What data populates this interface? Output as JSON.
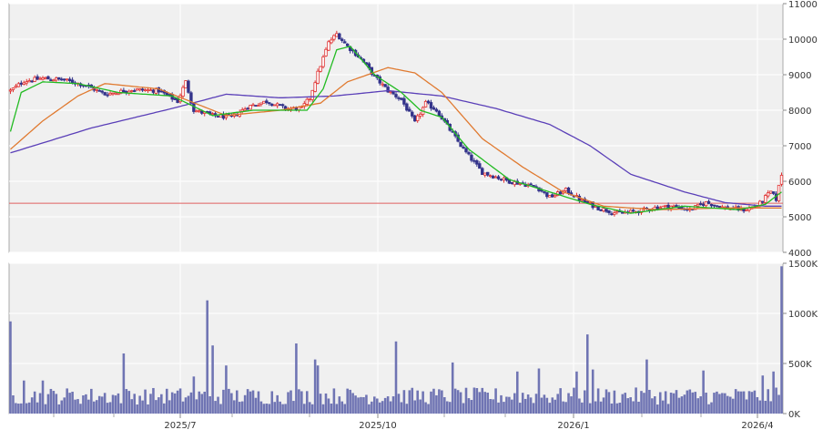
{
  "chart_data": [
    {
      "type": "candlestick",
      "title": "",
      "y_ticks": [
        "11000",
        "10000",
        "9000",
        "8000",
        "7000",
        "6000",
        "5000",
        "4000"
      ],
      "ylim": [
        4000,
        11000
      ],
      "x_ticks": [
        "2025/7",
        "2025/10",
        "2026/1",
        "2026/4"
      ],
      "grid": true,
      "reference_line": 5380,
      "colors": {
        "up": "#e03030",
        "down": "#33338a",
        "ma_short": "#22bb22",
        "ma_mid": "#e07a30",
        "ma_long": "#5a3fb8",
        "reference": "#e06060"
      },
      "price_keypoints": [
        [
          0,
          8550
        ],
        [
          5,
          8820
        ],
        [
          12,
          8900
        ],
        [
          20,
          8850
        ],
        [
          28,
          8700
        ],
        [
          35,
          8450
        ],
        [
          45,
          8580
        ],
        [
          55,
          8550
        ],
        [
          62,
          8250
        ],
        [
          65,
          8800
        ],
        [
          68,
          8000
        ],
        [
          75,
          7850
        ],
        [
          82,
          7800
        ],
        [
          88,
          8100
        ],
        [
          95,
          8250
        ],
        [
          102,
          8050
        ],
        [
          108,
          8050
        ],
        [
          111,
          8350
        ],
        [
          114,
          9050
        ],
        [
          118,
          9900
        ],
        [
          121,
          10150
        ],
        [
          125,
          9800
        ],
        [
          130,
          9450
        ],
        [
          135,
          8950
        ],
        [
          140,
          8550
        ],
        [
          145,
          8300
        ],
        [
          150,
          7650
        ],
        [
          154,
          8200
        ],
        [
          158,
          8000
        ],
        [
          163,
          7450
        ],
        [
          168,
          6900
        ],
        [
          175,
          6250
        ],
        [
          185,
          6000
        ],
        [
          195,
          5850
        ],
        [
          200,
          5550
        ],
        [
          206,
          5750
        ],
        [
          212,
          5450
        ],
        [
          218,
          5250
        ],
        [
          225,
          5100
        ],
        [
          232,
          5150
        ],
        [
          238,
          5250
        ],
        [
          245,
          5300
        ],
        [
          252,
          5200
        ],
        [
          258,
          5400
        ],
        [
          265,
          5250
        ],
        [
          272,
          5200
        ],
        [
          277,
          5300
        ],
        [
          280,
          5550
        ],
        [
          282,
          5700
        ],
        [
          284,
          5500
        ],
        [
          286,
          6200
        ]
      ],
      "ma_short_keypoints": [
        [
          0,
          7400
        ],
        [
          4,
          8500
        ],
        [
          12,
          8800
        ],
        [
          25,
          8750
        ],
        [
          40,
          8500
        ],
        [
          60,
          8400
        ],
        [
          75,
          7850
        ],
        [
          90,
          8000
        ],
        [
          110,
          8000
        ],
        [
          116,
          8600
        ],
        [
          121,
          9700
        ],
        [
          126,
          9800
        ],
        [
          135,
          9000
        ],
        [
          145,
          8500
        ],
        [
          152,
          8000
        ],
        [
          160,
          7800
        ],
        [
          170,
          6900
        ],
        [
          185,
          6050
        ],
        [
          200,
          5700
        ],
        [
          215,
          5350
        ],
        [
          230,
          5100
        ],
        [
          250,
          5300
        ],
        [
          270,
          5200
        ],
        [
          280,
          5350
        ],
        [
          286,
          5700
        ]
      ],
      "ma_mid_keypoints": [
        [
          0,
          6900
        ],
        [
          12,
          7700
        ],
        [
          25,
          8400
        ],
        [
          35,
          8750
        ],
        [
          55,
          8600
        ],
        [
          80,
          7850
        ],
        [
          100,
          8000
        ],
        [
          115,
          8200
        ],
        [
          125,
          8800
        ],
        [
          140,
          9200
        ],
        [
          150,
          9050
        ],
        [
          160,
          8500
        ],
        [
          175,
          7200
        ],
        [
          190,
          6400
        ],
        [
          205,
          5700
        ],
        [
          220,
          5300
        ],
        [
          240,
          5200
        ],
        [
          265,
          5250
        ],
        [
          286,
          5250
        ]
      ],
      "ma_long_keypoints": [
        [
          0,
          6800
        ],
        [
          30,
          7500
        ],
        [
          60,
          8050
        ],
        [
          80,
          8450
        ],
        [
          100,
          8350
        ],
        [
          120,
          8400
        ],
        [
          140,
          8550
        ],
        [
          160,
          8400
        ],
        [
          180,
          8050
        ],
        [
          200,
          7600
        ],
        [
          215,
          7000
        ],
        [
          230,
          6200
        ],
        [
          250,
          5700
        ],
        [
          265,
          5400
        ],
        [
          280,
          5300
        ],
        [
          286,
          5300
        ]
      ]
    },
    {
      "type": "bar",
      "title": "",
      "y_ticks": [
        "1500K",
        "1000K",
        "500K",
        "0K"
      ],
      "ylim": [
        0,
        1500000
      ],
      "x_ticks": [
        "2025/7",
        "2025/10",
        "2026/1",
        "2026/4"
      ],
      "grid": true,
      "color": "#6f74b3",
      "volume_spikes": [
        [
          0,
          920000
        ],
        [
          5,
          330000
        ],
        [
          12,
          330000
        ],
        [
          42,
          600000
        ],
        [
          68,
          370000
        ],
        [
          73,
          1130000
        ],
        [
          75,
          680000
        ],
        [
          80,
          480000
        ],
        [
          106,
          700000
        ],
        [
          113,
          540000
        ],
        [
          114,
          480000
        ],
        [
          143,
          720000
        ],
        [
          164,
          510000
        ],
        [
          188,
          420000
        ],
        [
          196,
          450000
        ],
        [
          210,
          420000
        ],
        [
          214,
          790000
        ],
        [
          216,
          440000
        ],
        [
          236,
          540000
        ],
        [
          257,
          430000
        ],
        [
          279,
          380000
        ],
        [
          283,
          420000
        ],
        [
          286,
          1470000
        ]
      ]
    }
  ]
}
